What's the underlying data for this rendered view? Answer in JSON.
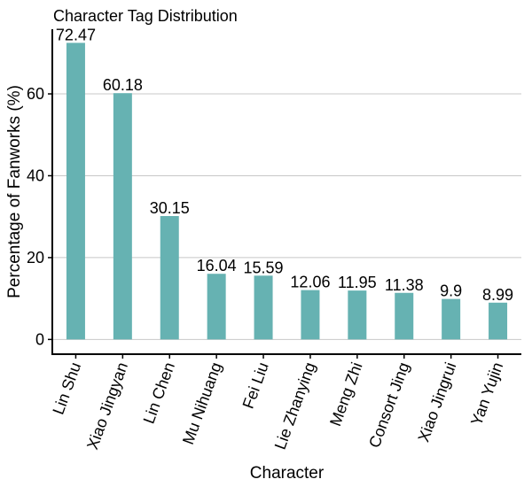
{
  "chart_data": {
    "type": "bar",
    "title": "Character Tag Distribution",
    "xlabel": "Character",
    "ylabel": "Percentage of Fanworks (%)",
    "categories": [
      "Lin Shu",
      "Xiao Jingyan",
      "Lin Chen",
      "Mu Nihuang",
      "Fei Liu",
      "Lie Zhanying",
      "Meng Zhi",
      "Consort Jing",
      "Xiao Jingrui",
      "Yan Yujin"
    ],
    "values": [
      72.47,
      60.18,
      30.15,
      16.04,
      15.59,
      12.06,
      11.95,
      11.38,
      9.9,
      8.99
    ],
    "data_labels": [
      "72.47",
      "60.18",
      "30.15",
      "16.04",
      "15.59",
      "12.06",
      "11.95",
      "11.38",
      "9.9",
      "8.99"
    ],
    "yticks": [
      0,
      20,
      40,
      60
    ],
    "ytick_labels": [
      "0",
      "20",
      "40",
      "60"
    ],
    "ylim": [
      -3.6,
      75.8
    ],
    "grid": "horizontal major lines",
    "legend": "none",
    "bar_color": "#66b2b2",
    "grid_color": "#c8c8c8"
  }
}
